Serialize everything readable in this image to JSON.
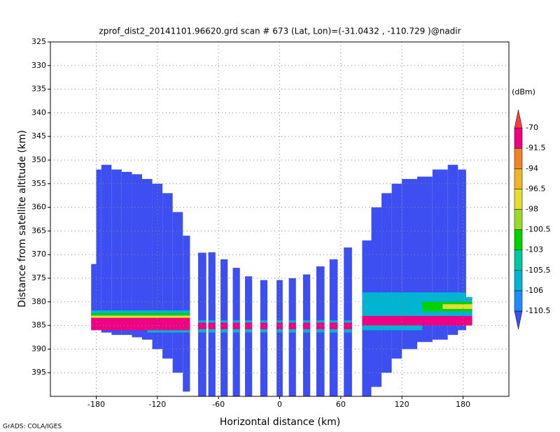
{
  "chart_data": {
    "type": "field",
    "title": "zprof_dist2_20141101.96620.grd  scan # 673  (Lat, Lon)=(-31.0432 , -110.729 )@nadir",
    "x_label": "Horizontal distance (km)",
    "y_label": "Distance from satellite altitude (km)",
    "footer": "GrADS: COLA/IGES",
    "xlim": [
      -225,
      225
    ],
    "xticks": [
      -180,
      -120,
      -60,
      0,
      60,
      120,
      180
    ],
    "ylim": [
      400,
      325
    ],
    "yticks": [
      325,
      330,
      335,
      340,
      345,
      350,
      355,
      360,
      365,
      370,
      375,
      380,
      385,
      390,
      395
    ],
    "grid": true,
    "colorbar": {
      "label": "(dBm)",
      "levels": [
        -110.5,
        -106,
        -105.5,
        -103,
        -100.5,
        -98,
        -96.5,
        -94,
        -91.5,
        -70
      ],
      "colors": [
        "#3d4ff0",
        "#1e8cff",
        "#00b4d2",
        "#00c8a0",
        "#00d200",
        "#96dc28",
        "#e6dc32",
        "#f0b428",
        "#f08228",
        "#f00082",
        "#fa3c3c"
      ]
    },
    "cells": [
      {
        "x0": -185,
        "x1": -180,
        "top": 372,
        "bottom": 386,
        "value": -112
      },
      {
        "x0": -180,
        "x1": -175,
        "top": 352,
        "bottom": 386,
        "value": -112
      },
      {
        "x0": -175,
        "x1": -165,
        "top": 351,
        "bottom": 386.5,
        "value": -112
      },
      {
        "x0": -165,
        "x1": -155,
        "top": 352,
        "bottom": 387,
        "value": -112
      },
      {
        "x0": -155,
        "x1": -145,
        "top": 352.5,
        "bottom": 387,
        "value": -112
      },
      {
        "x0": -145,
        "x1": -135,
        "top": 353,
        "bottom": 387.5,
        "value": -112
      },
      {
        "x0": -135,
        "x1": -125,
        "top": 354,
        "bottom": 388,
        "value": -112
      },
      {
        "x0": -125,
        "x1": -115,
        "top": 355,
        "bottom": 390,
        "value": -112
      },
      {
        "x0": -115,
        "x1": -105,
        "top": 357,
        "bottom": 392,
        "value": -112
      },
      {
        "x0": -105,
        "x1": -95,
        "top": 361,
        "bottom": 395,
        "value": -112
      },
      {
        "x0": -95,
        "x1": -88,
        "top": 366,
        "bottom": 399,
        "value": -112
      },
      {
        "x0": -80,
        "x1": -72,
        "top": 369.6,
        "bottom": 400,
        "value": -112
      },
      {
        "x0": -70,
        "x1": -63,
        "top": 369.5,
        "bottom": 400,
        "value": -112
      },
      {
        "x0": -58,
        "x1": -51,
        "top": 371,
        "bottom": 400,
        "value": -112
      },
      {
        "x0": -46,
        "x1": -39,
        "top": 372.8,
        "bottom": 400,
        "value": -112
      },
      {
        "x0": -34,
        "x1": -27,
        "top": 374.6,
        "bottom": 400,
        "value": -112
      },
      {
        "x0": -19,
        "x1": -12,
        "top": 375.4,
        "bottom": 400,
        "value": -112
      },
      {
        "x0": -3,
        "x1": 3,
        "top": 375.4,
        "bottom": 400,
        "value": -112
      },
      {
        "x0": 9,
        "x1": 16,
        "top": 375,
        "bottom": 400,
        "value": -112
      },
      {
        "x0": 23,
        "x1": 30,
        "top": 374.2,
        "bottom": 400,
        "value": -112
      },
      {
        "x0": 36,
        "x1": 44,
        "top": 372.5,
        "bottom": 400,
        "value": -112
      },
      {
        "x0": 49,
        "x1": 57,
        "top": 371,
        "bottom": 400,
        "value": -112
      },
      {
        "x0": 63,
        "x1": 71,
        "top": 368.5,
        "bottom": 400,
        "value": -112
      },
      {
        "x0": 81,
        "x1": 90,
        "top": 367,
        "bottom": 400,
        "value": -112
      },
      {
        "x0": 90,
        "x1": 100,
        "top": 360,
        "bottom": 398,
        "value": -112
      },
      {
        "x0": 100,
        "x1": 110,
        "top": 357,
        "bottom": 395,
        "value": -112
      },
      {
        "x0": 110,
        "x1": 120,
        "top": 355,
        "bottom": 392,
        "value": -112
      },
      {
        "x0": 120,
        "x1": 135,
        "top": 354,
        "bottom": 390,
        "value": -112
      },
      {
        "x0": 135,
        "x1": 150,
        "top": 353.5,
        "bottom": 388.5,
        "value": -112
      },
      {
        "x0": 150,
        "x1": 165,
        "top": 352,
        "bottom": 388,
        "value": -112
      },
      {
        "x0": 165,
        "x1": 175,
        "top": 351,
        "bottom": 387,
        "value": -112
      },
      {
        "x0": 175,
        "x1": 183,
        "top": 352,
        "bottom": 386,
        "value": -112
      },
      {
        "x0": 183,
        "x1": 189,
        "top": 379,
        "bottom": 385,
        "value": -112
      }
    ],
    "bands": [
      {
        "x0": -185,
        "x1": -88,
        "top": 381.8,
        "bottom": 382.4,
        "value": -106
      },
      {
        "x0": -185,
        "x1": -88,
        "top": 382.4,
        "bottom": 382.9,
        "value": -103
      },
      {
        "x0": -185,
        "x1": -88,
        "top": 382.9,
        "bottom": 383.4,
        "value": -98
      },
      {
        "x0": -185,
        "x1": -88,
        "top": 383.4,
        "bottom": 386,
        "value": -80
      },
      {
        "x0": -130,
        "x1": -88,
        "top": 386,
        "bottom": 386.5,
        "value": -106
      },
      {
        "x0": -88,
        "x1": 81,
        "top": 383.9,
        "bottom": 384.4,
        "value": -106
      },
      {
        "x0": -88,
        "x1": 81,
        "top": 384.4,
        "bottom": 385.8,
        "value": -80
      },
      {
        "x0": -88,
        "x1": 81,
        "top": 385.8,
        "bottom": 386.5,
        "value": -106
      },
      {
        "x0": 81,
        "x1": 189,
        "top": 378,
        "bottom": 383,
        "value": -106
      },
      {
        "x0": 140,
        "x1": 189,
        "top": 380,
        "bottom": 382,
        "value": -103
      },
      {
        "x0": 160,
        "x1": 189,
        "top": 380.5,
        "bottom": 381.5,
        "value": -98
      },
      {
        "x0": 81,
        "x1": 189,
        "top": 383,
        "bottom": 385,
        "value": -80
      },
      {
        "x0": 81,
        "x1": 140,
        "top": 385,
        "bottom": 386,
        "value": -106
      }
    ]
  }
}
